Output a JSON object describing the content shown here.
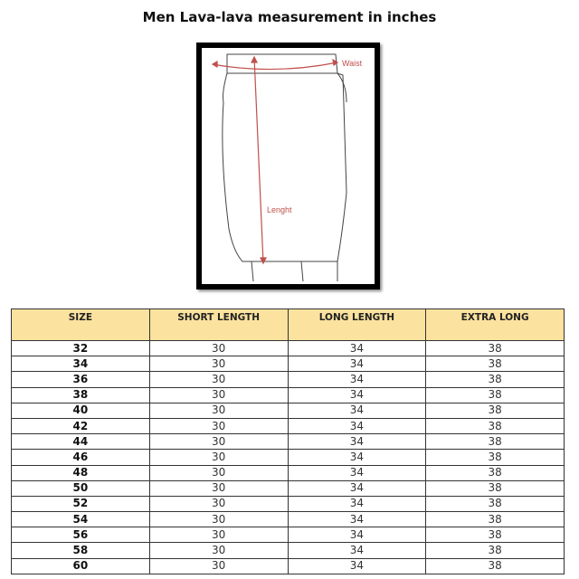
{
  "title": "Men Lava-lava measurement in inches",
  "diagram": {
    "waist_label": "Waist",
    "length_label": "Lenght",
    "accent": "#c0504d"
  },
  "table": {
    "headers": [
      "SIZE",
      "SHORT LENGTH",
      "LONG LENGTH",
      "EXTRA LONG"
    ],
    "rows": [
      [
        "32",
        "30",
        "34",
        "38"
      ],
      [
        "34",
        "30",
        "34",
        "38"
      ],
      [
        "36",
        "30",
        "34",
        "38"
      ],
      [
        "38",
        "30",
        "34",
        "38"
      ],
      [
        "40",
        "30",
        "34",
        "38"
      ],
      [
        "42",
        "30",
        "34",
        "38"
      ],
      [
        "44",
        "30",
        "34",
        "38"
      ],
      [
        "46",
        "30",
        "34",
        "38"
      ],
      [
        "48",
        "30",
        "34",
        "38"
      ],
      [
        "50",
        "30",
        "34",
        "38"
      ],
      [
        "52",
        "30",
        "34",
        "38"
      ],
      [
        "54",
        "30",
        "34",
        "38"
      ],
      [
        "56",
        "30",
        "34",
        "38"
      ],
      [
        "58",
        "30",
        "34",
        "38"
      ],
      [
        "60",
        "30",
        "34",
        "38"
      ]
    ]
  }
}
